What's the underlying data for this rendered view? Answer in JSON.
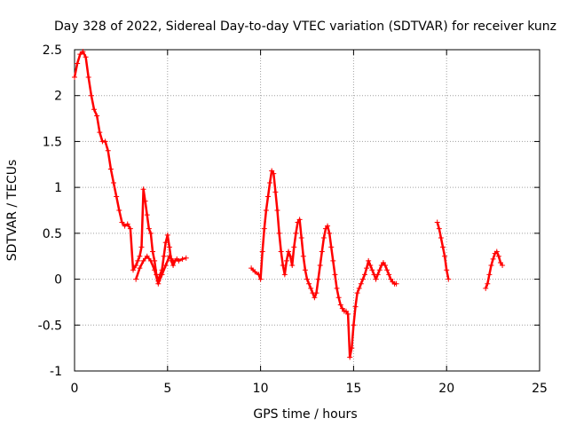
{
  "chart_data": {
    "type": "scatter",
    "title": "Day 328 of 2022, Sidereal Day-to-day VTEC variation (SDTVAR) for receiver kunz",
    "xlabel": "GPS time / hours",
    "ylabel": "SDTVAR / TECUs",
    "xlim": [
      0,
      25
    ],
    "ylim": [
      -1,
      2.5
    ],
    "grid": true,
    "marker": "+",
    "color": "#ff0000",
    "xticks": [
      0,
      5,
      10,
      15,
      20,
      25
    ],
    "xtick_labels": [
      "0",
      "5",
      "10",
      "15",
      "20",
      "25"
    ],
    "yticks": [
      2.5,
      2,
      1.5,
      1,
      0.5,
      0,
      -0.5,
      -1
    ],
    "ytick_labels": [
      "2.5",
      "2",
      "1.5",
      "1",
      "0.5",
      "0",
      "-0.5",
      "-1"
    ],
    "series": [
      {
        "name": "SDTVAR",
        "segments": [
          {
            "x": [
              0.0,
              0.15,
              0.3,
              0.45,
              0.6,
              0.75,
              0.9,
              1.05,
              1.2,
              1.35,
              1.5,
              1.65,
              1.8,
              1.95,
              2.1,
              2.25,
              2.4,
              2.55,
              2.7,
              2.85,
              3.0,
              3.15,
              3.3,
              3.4,
              3.5,
              3.6,
              3.7,
              3.8,
              3.9,
              4.0,
              4.1,
              4.2,
              4.3,
              4.4,
              4.5,
              4.6,
              4.7,
              4.8,
              4.9,
              5.0,
              5.1,
              5.2,
              5.3,
              5.4,
              5.5,
              5.6,
              5.8,
              6.0
            ],
            "y": [
              2.2,
              2.35,
              2.45,
              2.48,
              2.42,
              2.2,
              2.0,
              1.85,
              1.78,
              1.6,
              1.5,
              1.5,
              1.4,
              1.2,
              1.05,
              0.9,
              0.75,
              0.62,
              0.58,
              0.6,
              0.55,
              0.1,
              0.15,
              0.2,
              0.25,
              0.35,
              0.98,
              0.85,
              0.7,
              0.55,
              0.5,
              0.3,
              0.2,
              0.05,
              -0.02,
              0.05,
              0.1,
              0.25,
              0.4,
              0.48,
              0.35,
              0.2,
              0.15,
              0.2,
              0.22,
              0.2,
              0.22,
              0.23
            ]
          },
          {
            "x": [
              3.3,
              3.5,
              3.7,
              3.9,
              4.1,
              4.3,
              4.5,
              4.7,
              4.9,
              5.1,
              5.3
            ],
            "y": [
              0.0,
              0.12,
              0.2,
              0.25,
              0.2,
              0.1,
              -0.05,
              0.05,
              0.15,
              0.25,
              0.2
            ]
          },
          {
            "x": [
              9.5,
              9.7,
              9.9,
              10.0,
              10.1,
              10.2,
              10.3,
              10.4,
              10.5,
              10.6,
              10.7,
              10.8,
              10.9,
              11.0,
              11.1,
              11.2,
              11.3,
              11.4,
              11.5,
              11.6,
              11.7,
              11.8,
              11.9,
              12.0,
              12.1,
              12.2,
              12.3,
              12.4,
              12.5,
              12.6,
              12.7,
              12.8,
              12.9,
              13.0,
              13.1,
              13.2,
              13.3,
              13.4,
              13.5,
              13.6,
              13.7,
              13.8,
              13.9,
              14.0,
              14.1,
              14.2,
              14.3,
              14.4,
              14.5,
              14.6,
              14.7,
              14.8,
              14.9,
              15.0,
              15.1,
              15.2,
              15.3,
              15.4,
              15.5,
              15.6,
              15.7,
              15.8,
              15.9,
              16.0,
              16.1,
              16.2,
              16.3,
              16.4,
              16.5,
              16.6,
              16.7,
              16.8,
              16.9,
              17.0,
              17.1,
              17.2,
              17.3
            ],
            "y": [
              0.12,
              0.08,
              0.05,
              0.0,
              0.3,
              0.55,
              0.75,
              0.9,
              1.05,
              1.18,
              1.15,
              0.95,
              0.75,
              0.5,
              0.3,
              0.15,
              0.05,
              0.2,
              0.3,
              0.25,
              0.15,
              0.35,
              0.5,
              0.62,
              0.65,
              0.45,
              0.25,
              0.1,
              0.0,
              -0.05,
              -0.1,
              -0.15,
              -0.2,
              -0.15,
              0.0,
              0.15,
              0.3,
              0.45,
              0.55,
              0.58,
              0.5,
              0.35,
              0.2,
              0.05,
              -0.1,
              -0.2,
              -0.28,
              -0.32,
              -0.35,
              -0.35,
              -0.38,
              -0.85,
              -0.75,
              -0.5,
              -0.3,
              -0.15,
              -0.1,
              -0.05,
              0.0,
              0.05,
              0.12,
              0.2,
              0.15,
              0.1,
              0.05,
              0.0,
              0.05,
              0.1,
              0.15,
              0.18,
              0.15,
              0.1,
              0.05,
              0.0,
              -0.03,
              -0.05,
              -0.05
            ]
          },
          {
            "x": [
              19.5,
              19.6,
              19.7,
              19.8,
              19.9,
              20.0,
              20.1
            ],
            "y": [
              0.62,
              0.55,
              0.45,
              0.35,
              0.25,
              0.1,
              0.0
            ]
          },
          {
            "x": [
              22.1,
              22.2,
              22.3,
              22.4,
              22.5,
              22.6,
              22.7,
              22.8,
              22.9,
              23.0
            ],
            "y": [
              -0.1,
              -0.05,
              0.05,
              0.15,
              0.22,
              0.28,
              0.3,
              0.25,
              0.18,
              0.15
            ]
          }
        ]
      }
    ]
  }
}
